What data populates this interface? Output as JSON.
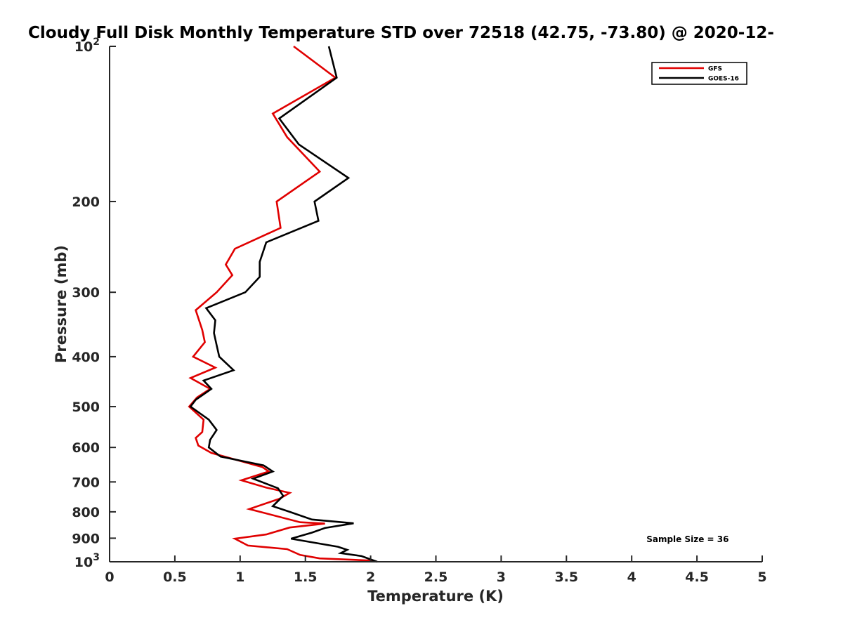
{
  "chart_data": {
    "type": "line",
    "title": "Cloudy Full Disk Monthly Temperature STD over 72518 (42.75, -73.80) @ 2020-12-",
    "xlabel": "Temperature (K)",
    "ylabel": "Pressure (mb)",
    "xlim": [
      0,
      5
    ],
    "ylim": [
      100,
      1000
    ],
    "yscale": "log",
    "y_reversed": true,
    "grid": false,
    "legend_position": "top-right",
    "xticks": [
      0,
      0.5,
      1,
      1.5,
      2,
      2.5,
      3,
      3.5,
      4,
      4.5,
      5
    ],
    "xtick_labels": [
      "0",
      "0.5",
      "1",
      "1.5",
      "2",
      "2.5",
      "3",
      "3.5",
      "4",
      "4.5",
      "5"
    ],
    "yticks": [
      100,
      200,
      300,
      400,
      500,
      600,
      700,
      800,
      900,
      1000
    ],
    "ytick_labels": [
      {
        "base": "10",
        "exp": "2"
      },
      {
        "base": "200",
        "exp": ""
      },
      {
        "base": "300",
        "exp": ""
      },
      {
        "base": "400",
        "exp": ""
      },
      {
        "base": "500",
        "exp": ""
      },
      {
        "base": "600",
        "exp": ""
      },
      {
        "base": "700",
        "exp": ""
      },
      {
        "base": "800",
        "exp": ""
      },
      {
        "base": "900",
        "exp": ""
      },
      {
        "base": "10",
        "exp": "3"
      }
    ],
    "series": [
      {
        "name": "GFS",
        "color": "#e00000",
        "points": [
          [
            1.41,
            100
          ],
          [
            1.73,
            115
          ],
          [
            1.25,
            135
          ],
          [
            1.36,
            150
          ],
          [
            1.61,
            175
          ],
          [
            1.28,
            200
          ],
          [
            1.31,
            225
          ],
          [
            0.96,
            247
          ],
          [
            0.89,
            265
          ],
          [
            0.94,
            278
          ],
          [
            0.82,
            300
          ],
          [
            0.66,
            325
          ],
          [
            0.71,
            355
          ],
          [
            0.73,
            375
          ],
          [
            0.64,
            400
          ],
          [
            0.81,
            420
          ],
          [
            0.62,
            440
          ],
          [
            0.77,
            462
          ],
          [
            0.67,
            480
          ],
          [
            0.61,
            500
          ],
          [
            0.72,
            530
          ],
          [
            0.71,
            560
          ],
          [
            0.66,
            575
          ],
          [
            0.68,
            595
          ],
          [
            0.78,
            615
          ],
          [
            1.17,
            655
          ],
          [
            1.22,
            668
          ],
          [
            1.01,
            695
          ],
          [
            1.2,
            718
          ],
          [
            1.38,
            735
          ],
          [
            1.3,
            755
          ],
          [
            1.07,
            790
          ],
          [
            1.46,
            838
          ],
          [
            1.65,
            843
          ],
          [
            1.38,
            858
          ],
          [
            1.2,
            885
          ],
          [
            0.96,
            902
          ],
          [
            1.06,
            930
          ],
          [
            1.36,
            945
          ],
          [
            1.46,
            970
          ],
          [
            1.61,
            985
          ],
          [
            2.02,
            995
          ],
          [
            2.05,
            1000
          ]
        ]
      },
      {
        "name": "GOES-16",
        "color": "#000000",
        "points": [
          [
            1.68,
            100
          ],
          [
            1.74,
            115
          ],
          [
            1.3,
            138
          ],
          [
            1.45,
            155
          ],
          [
            1.83,
            180
          ],
          [
            1.57,
            200
          ],
          [
            1.6,
            218
          ],
          [
            1.2,
            240
          ],
          [
            1.15,
            262
          ],
          [
            1.15,
            280
          ],
          [
            1.04,
            300
          ],
          [
            0.74,
            322
          ],
          [
            0.81,
            340
          ],
          [
            0.8,
            360
          ],
          [
            0.82,
            380
          ],
          [
            0.84,
            400
          ],
          [
            0.95,
            425
          ],
          [
            0.72,
            445
          ],
          [
            0.78,
            462
          ],
          [
            0.66,
            485
          ],
          [
            0.62,
            500
          ],
          [
            0.76,
            530
          ],
          [
            0.82,
            555
          ],
          [
            0.77,
            580
          ],
          [
            0.76,
            600
          ],
          [
            0.85,
            625
          ],
          [
            1.18,
            650
          ],
          [
            1.25,
            668
          ],
          [
            1.1,
            690
          ],
          [
            1.29,
            720
          ],
          [
            1.33,
            745
          ],
          [
            1.25,
            780
          ],
          [
            1.38,
            800
          ],
          [
            1.55,
            828
          ],
          [
            1.87,
            842
          ],
          [
            1.65,
            860
          ],
          [
            1.55,
            878
          ],
          [
            1.39,
            902
          ],
          [
            1.75,
            935
          ],
          [
            1.82,
            948
          ],
          [
            1.77,
            962
          ],
          [
            1.93,
            975
          ],
          [
            2.05,
            1000
          ]
        ]
      }
    ],
    "annotations": [
      {
        "text": "Sample Size = 36",
        "x": 4.35,
        "y": 905
      }
    ]
  }
}
